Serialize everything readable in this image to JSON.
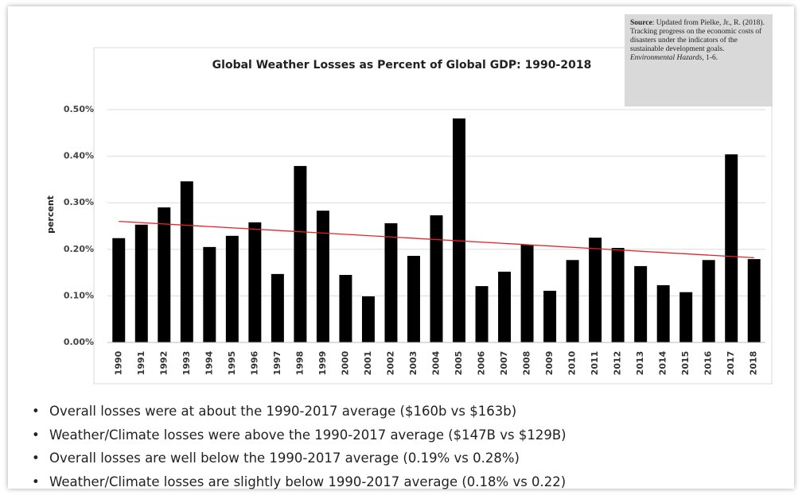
{
  "chart_data": {
    "type": "bar",
    "title": "Global Weather Losses as Percent of Global GDP: 1990-2018",
    "y_label": "percent",
    "categories": [
      "1990",
      "1991",
      "1992",
      "1993",
      "1994",
      "1995",
      "1996",
      "1997",
      "1998",
      "1999",
      "2000",
      "2001",
      "2002",
      "2003",
      "2004",
      "2005",
      "2006",
      "2007",
      "2008",
      "2009",
      "2010",
      "2011",
      "2012",
      "2013",
      "2014",
      "2015",
      "2016",
      "2017",
      "2018"
    ],
    "values": [
      0.224,
      0.253,
      0.29,
      0.346,
      0.205,
      0.229,
      0.258,
      0.147,
      0.379,
      0.283,
      0.145,
      0.099,
      0.256,
      0.186,
      0.273,
      0.481,
      0.121,
      0.152,
      0.21,
      0.111,
      0.177,
      0.225,
      0.203,
      0.164,
      0.123,
      0.108,
      0.177,
      0.404,
      0.179
    ],
    "color": "#000000",
    "ylim": [
      0,
      0.5
    ],
    "yticks": [
      {
        "value": 0,
        "label": "0.00%"
      },
      {
        "value": 0.1,
        "label": "0.10%"
      },
      {
        "value": 0.2,
        "label": "0.20%"
      },
      {
        "value": 0.3,
        "label": "0.30%"
      },
      {
        "value": 0.4,
        "label": "0.40%"
      },
      {
        "value": 0.5,
        "label": "0.50%"
      }
    ],
    "grid": true,
    "trendline": {
      "values": [
        0.26,
        0.182
      ],
      "color": "#e8202a"
    }
  },
  "source": {
    "label": "Source",
    "text": ": Updated from Pielke, Jr., R. (2018). Tracking progress on the economic costs of disasters under the indicators of the sustainable development goals. ",
    "journal": "Environmental Hazards",
    "pages": ", 1-6."
  },
  "notes": [
    "Overall losses were at about the 1990-2017 average ($160b vs $163b)",
    "Weather/Climate losses were above the 1990-2017 average ($147B vs $129B)",
    "Overall losses are well below the 1990-2017 average (0.19% vs 0.28%)",
    "Weather/Climate losses are slightly below 1990-2017 average (0.18% vs 0.22)"
  ]
}
